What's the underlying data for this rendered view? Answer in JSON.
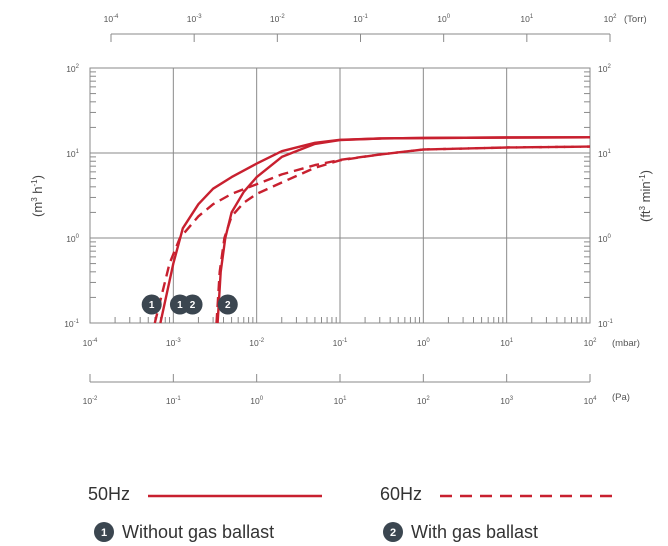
{
  "chart_data": {
    "type": "line",
    "x_axis": {
      "unit": "(mbar)",
      "scale": "log",
      "xlim": [
        0.0001,
        100
      ],
      "ticks": [
        [
          "10",
          "-4"
        ],
        [
          "10",
          "-3"
        ],
        [
          "10",
          "-2"
        ],
        [
          "10",
          "-1"
        ],
        [
          "10",
          "0"
        ],
        [
          "10",
          "1"
        ],
        [
          "10",
          "2"
        ]
      ]
    },
    "x_axis_top": {
      "unit": "(Torr)",
      "scale": "log",
      "ticks": [
        [
          "10",
          "-4"
        ],
        [
          "10",
          "-3"
        ],
        [
          "10",
          "-2"
        ],
        [
          "10",
          "-1"
        ],
        [
          "10",
          "0"
        ],
        [
          "10",
          "1"
        ],
        [
          "10",
          "2"
        ]
      ]
    },
    "x_axis_bottom": {
      "unit": "(Pa)",
      "scale": "log",
      "ticks": [
        [
          "10",
          "-2"
        ],
        [
          "10",
          "-1"
        ],
        [
          "10",
          "0"
        ],
        [
          "10",
          "1"
        ],
        [
          "10",
          "2"
        ],
        [
          "10",
          "3"
        ],
        [
          "10",
          "4"
        ]
      ]
    },
    "y_axis_left": {
      "label_base": "(m",
      "label_sup1": "3",
      "label_mid": " h",
      "label_sup2": "-1",
      "label_end": ")",
      "scale": "log",
      "ylim": [
        0.1,
        100
      ],
      "ticks": [
        [
          "10",
          "2"
        ],
        [
          "10",
          "1"
        ],
        [
          "10",
          "0"
        ],
        [
          "10",
          "-1"
        ]
      ]
    },
    "y_axis_right": {
      "label_base": "(ft",
      "label_sup1": "3",
      "label_mid": " min",
      "label_sup2": "-1",
      "label_end": ")",
      "scale": "log",
      "ticks": [
        [
          "10",
          "2"
        ],
        [
          "10",
          "1"
        ],
        [
          "10",
          "0"
        ],
        [
          "10",
          "-1"
        ]
      ]
    },
    "grid": true,
    "series": [
      {
        "name": "50Hz",
        "style": "solid",
        "variant": "1",
        "points": [
          [
            0.0007,
            0.1
          ],
          [
            0.001,
            0.5
          ],
          [
            0.0013,
            1.3
          ],
          [
            0.002,
            2.5
          ],
          [
            0.003,
            3.8
          ],
          [
            0.005,
            5.2
          ],
          [
            0.01,
            7.5
          ],
          [
            0.02,
            10.5
          ],
          [
            0.05,
            13.2
          ],
          [
            0.1,
            14.3
          ],
          [
            0.3,
            14.8
          ],
          [
            1,
            15.0
          ],
          [
            10,
            15.2
          ],
          [
            100,
            15.3
          ]
        ]
      },
      {
        "name": "50Hz",
        "style": "solid",
        "variant": "2",
        "points": [
          [
            0.0034,
            0.1
          ],
          [
            0.0037,
            0.4
          ],
          [
            0.0042,
            1.0
          ],
          [
            0.005,
            2.0
          ],
          [
            0.007,
            3.5
          ],
          [
            0.01,
            5.2
          ],
          [
            0.02,
            9.0
          ],
          [
            0.05,
            12.8
          ],
          [
            0.1,
            14.2
          ],
          [
            0.3,
            14.8
          ],
          [
            1,
            15.0
          ],
          [
            10,
            15.2
          ],
          [
            100,
            15.3
          ]
        ]
      },
      {
        "name": "60Hz",
        "style": "dashed",
        "variant": "1",
        "points": [
          [
            0.0006,
            0.1
          ],
          [
            0.0009,
            0.5
          ],
          [
            0.0012,
            1.0
          ],
          [
            0.002,
            1.8
          ],
          [
            0.003,
            2.5
          ],
          [
            0.005,
            3.3
          ],
          [
            0.01,
            4.3
          ],
          [
            0.02,
            5.6
          ],
          [
            0.05,
            7.2
          ],
          [
            0.1,
            8.3
          ],
          [
            0.3,
            9.6
          ],
          [
            1,
            11.0
          ],
          [
            10,
            11.6
          ],
          [
            100,
            11.9
          ]
        ]
      },
      {
        "name": "60Hz",
        "style": "dashed",
        "variant": "2",
        "points": [
          [
            0.0033,
            0.1
          ],
          [
            0.0036,
            0.4
          ],
          [
            0.0041,
            1.0
          ],
          [
            0.005,
            1.8
          ],
          [
            0.007,
            2.6
          ],
          [
            0.01,
            3.3
          ],
          [
            0.02,
            4.5
          ],
          [
            0.05,
            6.7
          ],
          [
            0.1,
            8.2
          ],
          [
            0.3,
            9.6
          ],
          [
            1,
            11.0
          ],
          [
            10,
            11.6
          ],
          [
            100,
            11.9
          ]
        ]
      }
    ],
    "color": "#c8202f",
    "markers": [
      {
        "text": "1",
        "x": 0.00055,
        "y": 0.165
      },
      {
        "text": "1",
        "x": 0.0012,
        "y": 0.165
      },
      {
        "text": "2",
        "x": 0.0017,
        "y": 0.165
      },
      {
        "text": "2",
        "x": 0.0045,
        "y": 0.165
      }
    ],
    "legend": {
      "lines": [
        {
          "label": "50Hz",
          "style": "solid"
        },
        {
          "label": "60Hz",
          "style": "dashed"
        }
      ],
      "badges": [
        {
          "num": "1",
          "label": "Without gas ballast"
        },
        {
          "num": "2",
          "label": "With gas ballast"
        }
      ]
    }
  }
}
